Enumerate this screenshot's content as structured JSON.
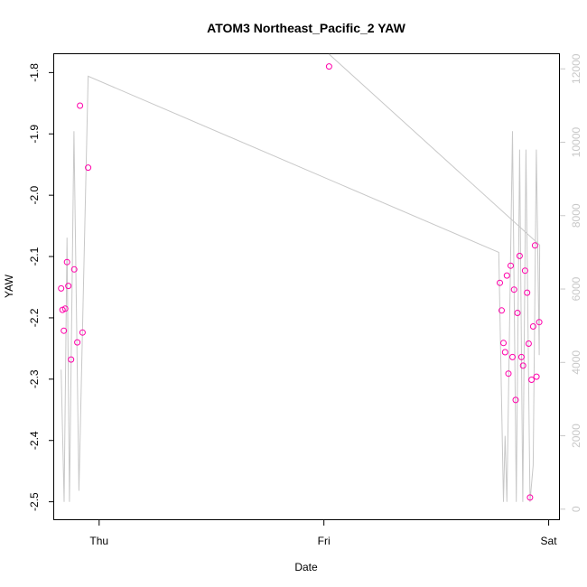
{
  "chart_data": {
    "type": "scatter",
    "title": "ATOM3 Northeast_Pacific_2 YAW",
    "xlabel": "Date",
    "ylabel": "YAW",
    "x_ticks": [
      "Thu",
      "Fri",
      "Sat"
    ],
    "y_ticks": [
      "-1.8",
      "-1.9",
      "-2.0",
      "-2.1",
      "-2.2",
      "-2.3",
      "-2.4",
      "-2.5"
    ],
    "y2_ticks": [
      "0",
      "2000",
      "4000",
      "6000",
      "8000",
      "10000",
      "12000"
    ],
    "ylim": [
      -2.53,
      -1.77
    ],
    "y2lim": [
      -300,
      12400
    ],
    "xlim_days": [
      -0.2,
      2.05
    ],
    "point_color": "#ff00aa",
    "line_color": "#c8c8c8",
    "right_axis_color": "#c8c8c8",
    "points": [
      {
        "x": -0.169,
        "y": -2.152
      },
      {
        "x": -0.163,
        "y": -2.187
      },
      {
        "x": -0.157,
        "y": -2.221
      },
      {
        "x": -0.151,
        "y": -2.185
      },
      {
        "x": -0.143,
        "y": -2.109
      },
      {
        "x": -0.137,
        "y": -2.148
      },
      {
        "x": -0.125,
        "y": -2.268
      },
      {
        "x": -0.111,
        "y": -2.121
      },
      {
        "x": -0.097,
        "y": -2.24
      },
      {
        "x": -0.085,
        "y": -1.854
      },
      {
        "x": -0.074,
        "y": -2.224
      },
      {
        "x": -0.049,
        "y": -1.955
      },
      {
        "x": 1.023,
        "y": -1.79
      },
      {
        "x": 1.783,
        "y": -2.143
      },
      {
        "x": 1.791,
        "y": -2.188
      },
      {
        "x": 1.799,
        "y": -2.241
      },
      {
        "x": 1.806,
        "y": -2.256
      },
      {
        "x": 1.814,
        "y": -2.131
      },
      {
        "x": 1.821,
        "y": -2.291
      },
      {
        "x": 1.831,
        "y": -2.115
      },
      {
        "x": 1.839,
        "y": -2.264
      },
      {
        "x": 1.846,
        "y": -2.154
      },
      {
        "x": 1.853,
        "y": -2.334
      },
      {
        "x": 1.861,
        "y": -2.192
      },
      {
        "x": 1.871,
        "y": -2.099
      },
      {
        "x": 1.879,
        "y": -2.264
      },
      {
        "x": 1.886,
        "y": -2.278
      },
      {
        "x": 1.895,
        "y": -2.123
      },
      {
        "x": 1.904,
        "y": -2.159
      },
      {
        "x": 1.911,
        "y": -2.242
      },
      {
        "x": 1.917,
        "y": -2.493
      },
      {
        "x": 1.924,
        "y": -2.301
      },
      {
        "x": 1.931,
        "y": -2.214
      },
      {
        "x": 1.939,
        "y": -2.082
      },
      {
        "x": 1.946,
        "y": -2.296
      },
      {
        "x": 1.958,
        "y": -2.207
      }
    ],
    "line_series": [
      {
        "x": -0.169,
        "y": 3800
      },
      {
        "x": -0.156,
        "y": 200
      },
      {
        "x": -0.143,
        "y": 7400
      },
      {
        "x": -0.132,
        "y": 200
      },
      {
        "x": -0.112,
        "y": 10300
      },
      {
        "x": -0.09,
        "y": 500
      },
      {
        "x": -0.049,
        "y": 11800
      },
      {
        "x": 1.778,
        "y": 7000
      },
      {
        "x": 1.799,
        "y": 200
      },
      {
        "x": 1.806,
        "y": 2000
      },
      {
        "x": 1.814,
        "y": 200
      },
      {
        "x": 1.839,
        "y": 10300
      },
      {
        "x": 1.856,
        "y": 200
      },
      {
        "x": 1.871,
        "y": 9800
      },
      {
        "x": 1.885,
        "y": 200
      },
      {
        "x": 1.899,
        "y": 9800
      },
      {
        "x": 1.917,
        "y": 200
      },
      {
        "x": 1.931,
        "y": 1200
      },
      {
        "x": 1.945,
        "y": 9800
      },
      {
        "x": 1.958,
        "y": 4200
      },
      {
        "x": 1.96,
        "y": 7200
      },
      {
        "x": 1.023,
        "y": 12400
      }
    ]
  }
}
